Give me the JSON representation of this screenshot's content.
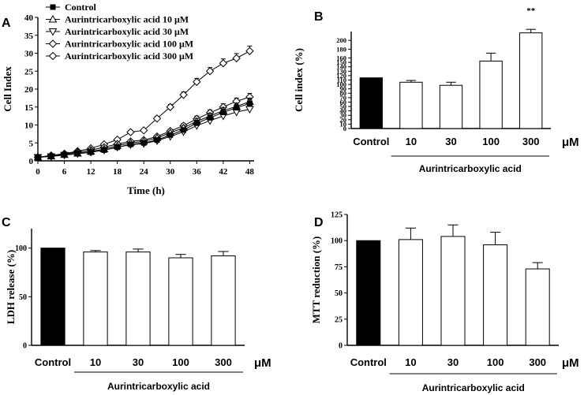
{
  "chart_data": [
    {
      "panel": "A",
      "type": "line",
      "xlabel": "Time (h)",
      "ylabel": "Cell Index",
      "xlim": [
        0,
        49
      ],
      "ylim": [
        0,
        40
      ],
      "xticks": [
        0,
        6,
        12,
        18,
        24,
        30,
        36,
        42,
        48
      ],
      "yticks": [
        0,
        5,
        10,
        15,
        20,
        25,
        30,
        35,
        40
      ],
      "x": [
        0,
        3,
        6,
        9,
        12,
        15,
        18,
        21,
        24,
        27,
        30,
        33,
        36,
        39,
        42,
        45,
        48
      ],
      "series": [
        {
          "name": "Control",
          "marker": "filled-square",
          "values": [
            1.0,
            1.3,
            1.7,
            2.0,
            2.4,
            3.0,
            3.8,
            4.6,
            5.0,
            5.8,
            7.2,
            8.6,
            10.5,
            12.0,
            13.5,
            14.8,
            16.0
          ],
          "errors": [
            0.3,
            0.2,
            0.2,
            0.2,
            0.3,
            0.3,
            0.3,
            0.3,
            0.4,
            0.4,
            0.5,
            0.6,
            0.8,
            0.8,
            0.9,
            0.9,
            1.0
          ]
        },
        {
          "name": "Aurintricarboxylic acid 10 μM",
          "marker": "triangle-up",
          "values": [
            1.0,
            1.3,
            1.7,
            2.1,
            2.6,
            3.3,
            4.2,
            5.0,
            5.4,
            6.4,
            7.8,
            9.2,
            11.0,
            12.5,
            14.0,
            15.2,
            16.5
          ],
          "errors": [
            0.3,
            0.2,
            0.2,
            0.2,
            0.3,
            0.3,
            0.3,
            0.3,
            0.4,
            0.4,
            0.5,
            0.6,
            0.8,
            0.8,
            0.9,
            0.9,
            1.0
          ]
        },
        {
          "name": "Aurintricarboxylic acid 30 μM",
          "marker": "triangle-down",
          "values": [
            1.0,
            1.2,
            1.6,
            2.0,
            2.4,
            3.0,
            3.8,
            4.5,
            4.8,
            5.6,
            6.8,
            8.1,
            9.8,
            11.2,
            12.5,
            13.6,
            14.4
          ],
          "errors": [
            0.3,
            0.2,
            0.2,
            0.2,
            0.3,
            0.3,
            0.3,
            0.3,
            0.4,
            0.4,
            0.5,
            0.6,
            0.8,
            0.8,
            0.9,
            0.9,
            1.0
          ]
        },
        {
          "name": "Aurintricarboxylic acid 100 μM",
          "marker": "diamond",
          "values": [
            1.0,
            1.4,
            1.9,
            2.4,
            3.0,
            3.8,
            4.7,
            5.4,
            5.8,
            6.8,
            8.3,
            9.8,
            11.7,
            13.4,
            15.0,
            16.6,
            17.8
          ],
          "errors": [
            0.3,
            0.2,
            0.2,
            0.2,
            0.3,
            0.3,
            0.3,
            0.3,
            0.4,
            0.4,
            0.5,
            0.6,
            0.8,
            0.8,
            0.9,
            0.9,
            1.0
          ]
        },
        {
          "name": "Aurintricarboxylic acid 300 μM",
          "marker": "diamond",
          "values": [
            1.0,
            1.5,
            2.0,
            2.7,
            3.5,
            4.6,
            5.9,
            8.0,
            8.5,
            11.8,
            15.0,
            18.4,
            22.0,
            25.0,
            27.2,
            28.6,
            30.6
          ],
          "errors": [
            0.3,
            0.2,
            0.2,
            0.2,
            0.3,
            0.3,
            0.3,
            0.4,
            0.4,
            0.6,
            0.7,
            0.8,
            1.0,
            1.0,
            1.2,
            1.3,
            1.4
          ]
        }
      ]
    },
    {
      "panel": "B",
      "type": "bar",
      "ylabel": "Cell index (%)",
      "ylim": [
        0,
        220
      ],
      "yticks": [
        0,
        10,
        20,
        30,
        40,
        50,
        60,
        70,
        80,
        90,
        100,
        110,
        120,
        130,
        140,
        150,
        160,
        180,
        200
      ],
      "categories": [
        "Control",
        "10",
        "30",
        "100",
        "300"
      ],
      "values": [
        115,
        105,
        98,
        153,
        217
      ],
      "errors": [
        0,
        4,
        7,
        18,
        8
      ],
      "fills": [
        "black",
        "white",
        "white",
        "white",
        "white"
      ],
      "annotation": {
        "text": "**",
        "category": "300"
      },
      "unit": "μM",
      "group_label": "Aurintricarboxylic acid"
    },
    {
      "panel": "C",
      "type": "bar",
      "ylabel": "LDH release (%)",
      "ylim": [
        0,
        120
      ],
      "yticks": [
        0,
        50,
        100
      ],
      "categories": [
        "Control",
        "10",
        "30",
        "100",
        "300"
      ],
      "values": [
        100,
        96,
        96,
        90,
        92
      ],
      "errors": [
        0,
        1.5,
        3,
        3.5,
        4.5
      ],
      "fills": [
        "black",
        "white",
        "white",
        "white",
        "white"
      ],
      "unit": "μM",
      "group_label": "Aurintricarboxylic acid"
    },
    {
      "panel": "D",
      "type": "bar",
      "ylabel": "MTT reduction (%)",
      "ylim": [
        0,
        125
      ],
      "yticks": [
        0,
        25,
        50,
        75,
        100,
        125
      ],
      "categories": [
        "Control",
        "10",
        "30",
        "100",
        "300"
      ],
      "values": [
        100,
        101,
        104,
        96,
        73
      ],
      "errors": [
        0,
        11,
        11,
        12,
        6
      ],
      "fills": [
        "black",
        "white",
        "white",
        "white",
        "white"
      ],
      "unit": "μM",
      "group_label": "Aurintricarboxylic acid"
    }
  ]
}
